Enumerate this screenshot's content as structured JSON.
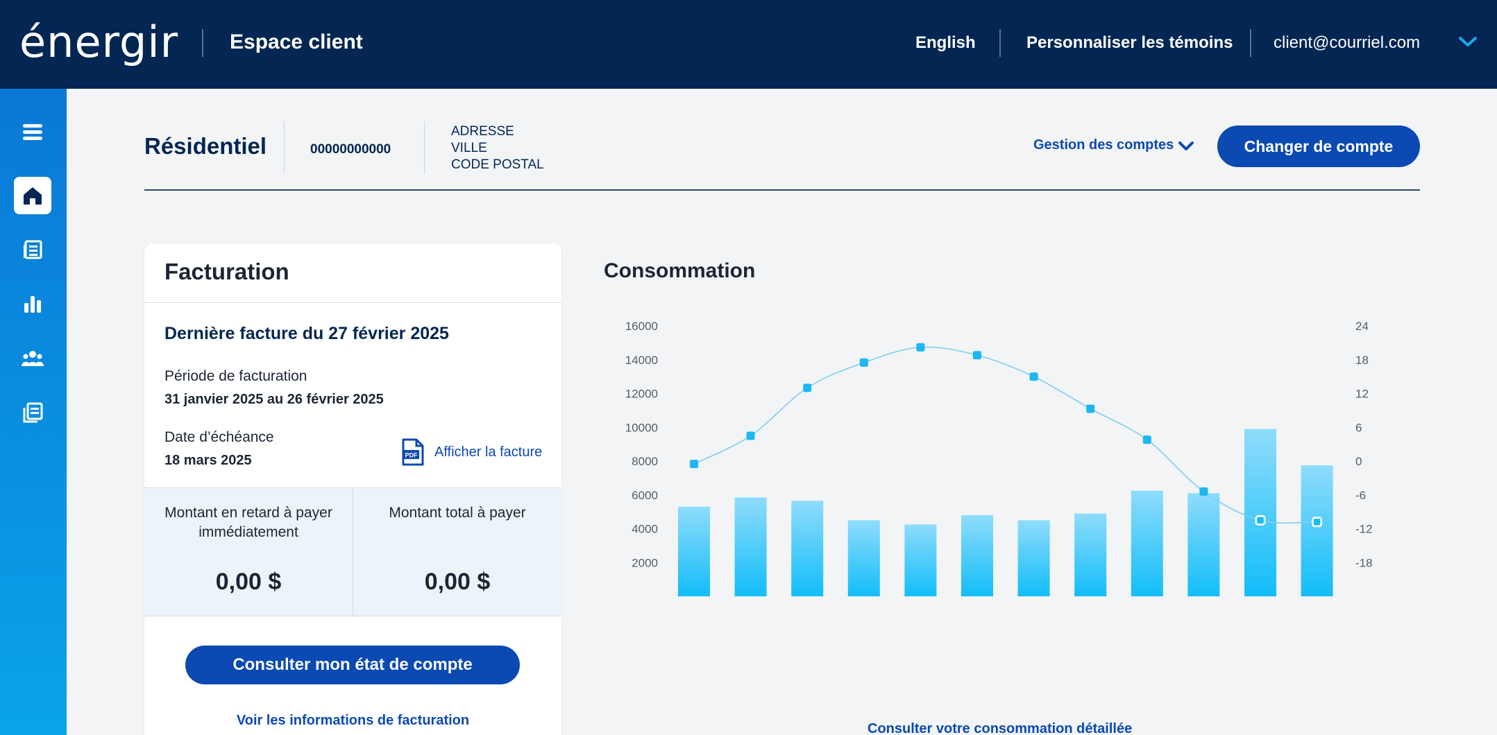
{
  "topbar": {
    "logo_text": "énergir",
    "space_title": "Espace client",
    "language_link": "English",
    "cookies_link": "Personnaliser les témoins",
    "user_email": "client@courriel.com"
  },
  "sidebar": {
    "items": [
      {
        "icon": "menu-icon"
      },
      {
        "icon": "home-icon",
        "active": true
      },
      {
        "icon": "bills-icon"
      },
      {
        "icon": "chart-icon"
      },
      {
        "icon": "users-icon"
      },
      {
        "icon": "documents-icon"
      }
    ]
  },
  "account": {
    "type": "Résidentiel",
    "number": "00000000000",
    "address_line1": "ADRESSE",
    "address_line2": "VILLE",
    "address_line3": "CODE POSTAL",
    "manage_label": "Gestion des comptes",
    "change_button": "Changer de compte"
  },
  "billing": {
    "title": "Facturation",
    "last_invoice": "Dernière facture du 27 février 2025",
    "period_label": "Période de facturation",
    "period_value": "31 janvier 2025 au 26 février 2025",
    "due_label": "Date d’échéance",
    "due_value": "18 mars 2025",
    "view_invoice": "Afficher la facture",
    "pdf_badge": "PDF",
    "overdue_label": "Montant en retard à payer immédiatement",
    "overdue_value": "0,00 $",
    "total_label": "Montant total à payer",
    "total_value": "0,00 $",
    "statement_button": "Consulter mon état de compte",
    "billing_info_link": "Voir les informations de facturation"
  },
  "consumption": {
    "title": "Consommation",
    "detail_link": "Consulter votre consommation détaillée"
  },
  "chart_data": {
    "type": "bar",
    "left_axis": {
      "ticks": [
        2000,
        4000,
        6000,
        8000,
        10000,
        12000,
        14000,
        16000
      ],
      "ylim": [
        0,
        16000
      ]
    },
    "right_axis": {
      "ticks": [
        -18,
        -12,
        -6,
        0,
        6,
        12,
        18,
        24
      ],
      "ylim": [
        -24,
        24
      ]
    },
    "bars": [
      5300,
      5850,
      5650,
      4500,
      4250,
      4800,
      4500,
      4900,
      6250,
      6100,
      9900,
      7750
    ],
    "temperature_line": [
      -0.5,
      4.5,
      13,
      17.5,
      20.2,
      18.8,
      15,
      9.3,
      3.8,
      -5.4,
      -10.5,
      -10.8
    ],
    "projected_points": [
      10,
      11
    ],
    "colors": {
      "bar_top": "#8fdcfb",
      "bar_bottom": "#12bdf9",
      "line": "#7fcdf0",
      "marker": "#1db7f2"
    }
  }
}
